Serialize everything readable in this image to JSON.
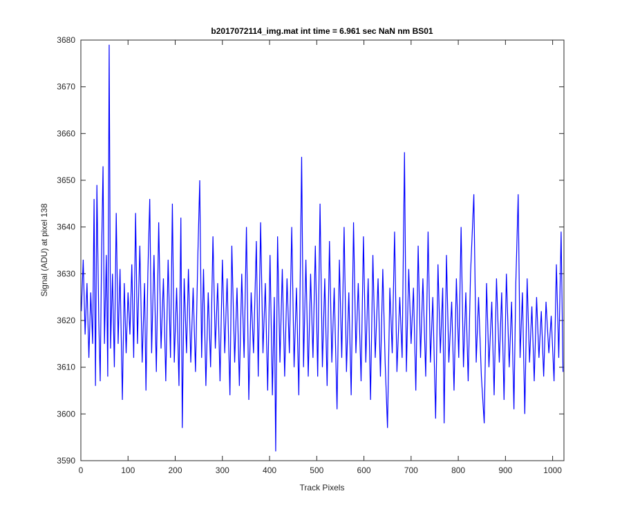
{
  "chart_data": {
    "type": "line",
    "title": "b2017072114_img.mat int time = 6.961 sec  NaN nm BS01",
    "xlabel": "Track Pixels",
    "ylabel": "Signal (ADU) at pixel 138",
    "xlim": [
      0,
      1024
    ],
    "ylim": [
      3590,
      3680
    ],
    "xticks": [
      0,
      100,
      200,
      300,
      400,
      500,
      600,
      700,
      800,
      900,
      1000
    ],
    "yticks": [
      3590,
      3600,
      3610,
      3620,
      3630,
      3640,
      3650,
      3660,
      3670,
      3680
    ],
    "grid": false,
    "x": [
      1,
      5,
      9,
      13,
      17,
      21,
      25,
      28,
      31,
      34,
      38,
      41,
      44,
      47,
      50,
      54,
      57,
      60,
      63,
      67,
      71,
      75,
      79,
      83,
      88,
      92,
      96,
      100,
      104,
      108,
      112,
      116,
      120,
      125,
      130,
      135,
      138,
      142,
      146,
      150,
      155,
      160,
      165,
      170,
      175,
      180,
      185,
      190,
      194,
      198,
      203,
      208,
      212,
      215,
      219,
      224,
      228,
      233,
      238,
      243,
      248,
      252,
      256,
      260,
      265,
      270,
      275,
      280,
      285,
      290,
      295,
      300,
      305,
      310,
      316,
      320,
      326,
      331,
      336,
      341,
      346,
      351,
      356,
      361,
      366,
      372,
      376,
      381,
      386,
      391,
      396,
      401,
      406,
      410,
      413,
      417,
      422,
      427,
      432,
      437,
      442,
      447,
      452,
      457,
      462,
      468,
      472,
      477,
      482,
      487,
      492,
      497,
      502,
      507,
      512,
      517,
      522,
      527,
      532,
      537,
      543,
      548,
      553,
      558,
      563,
      568,
      573,
      578,
      583,
      588,
      594,
      599,
      604,
      609,
      614,
      619,
      624,
      630,
      635,
      640,
      645,
      650,
      655,
      660,
      665,
      670,
      676,
      681,
      686,
      690,
      695,
      700,
      705,
      710,
      715,
      720,
      725,
      731,
      736,
      741,
      746,
      752,
      757,
      762,
      767,
      770,
      775,
      780,
      786,
      791,
      796,
      801,
      806,
      811,
      816,
      821,
      826,
      833,
      838,
      843,
      849,
      855,
      860,
      865,
      871,
      876,
      881,
      887,
      892,
      897,
      902,
      908,
      913,
      918,
      922,
      927,
      931,
      936,
      941,
      946,
      951,
      956,
      961,
      966,
      971,
      976,
      981,
      986,
      992,
      997,
      1003,
      1008,
      1013,
      1018,
      1022
    ],
    "series": [
      {
        "name": "signal",
        "color": "#0000ff",
        "values": [
          3622,
          3633,
          3617,
          3628,
          3612,
          3626,
          3615,
          3646,
          3606,
          3649,
          3620,
          3607,
          3635,
          3653,
          3615,
          3634,
          3608,
          3679,
          3614,
          3630,
          3610,
          3643,
          3615,
          3631,
          3603,
          3628,
          3613,
          3626,
          3617,
          3632,
          3612,
          3643,
          3615,
          3636,
          3611,
          3628,
          3605,
          3630,
          3646,
          3613,
          3634,
          3609,
          3641,
          3614,
          3629,
          3607,
          3633,
          3612,
          3645,
          3611,
          3627,
          3606,
          3642,
          3597,
          3629,
          3613,
          3631,
          3611,
          3627,
          3609,
          3634,
          3650,
          3612,
          3631,
          3606,
          3626,
          3610,
          3638,
          3614,
          3628,
          3607,
          3633,
          3613,
          3629,
          3604,
          3636,
          3611,
          3627,
          3606,
          3630,
          3612,
          3640,
          3603,
          3626,
          3613,
          3637,
          3608,
          3641,
          3613,
          3628,
          3605,
          3634,
          3604,
          3625,
          3592,
          3638,
          3611,
          3631,
          3608,
          3629,
          3613,
          3640,
          3610,
          3627,
          3604,
          3655,
          3610,
          3633,
          3608,
          3630,
          3612,
          3636,
          3608,
          3645,
          3610,
          3629,
          3606,
          3637,
          3611,
          3627,
          3601,
          3633,
          3612,
          3640,
          3609,
          3626,
          3604,
          3641,
          3613,
          3628,
          3607,
          3638,
          3611,
          3629,
          3603,
          3634,
          3612,
          3629,
          3608,
          3631,
          3611,
          3597,
          3627,
          3613,
          3639,
          3609,
          3625,
          3612,
          3656,
          3609,
          3631,
          3615,
          3627,
          3605,
          3636,
          3612,
          3629,
          3608,
          3639,
          3611,
          3625,
          3599,
          3632,
          3613,
          3627,
          3598,
          3634,
          3611,
          3624,
          3605,
          3629,
          3612,
          3640,
          3610,
          3626,
          3607,
          3630,
          3647,
          3611,
          3625,
          3608,
          3598,
          3628,
          3610,
          3624,
          3604,
          3629,
          3611,
          3626,
          3603,
          3630,
          3610,
          3624,
          3601,
          3628,
          3647,
          3612,
          3626,
          3600,
          3629,
          3611,
          3623,
          3607,
          3625,
          3612,
          3622,
          3608,
          3624,
          3613,
          3621,
          3607,
          3632,
          3612,
          3639,
          3609
        ]
      }
    ]
  }
}
